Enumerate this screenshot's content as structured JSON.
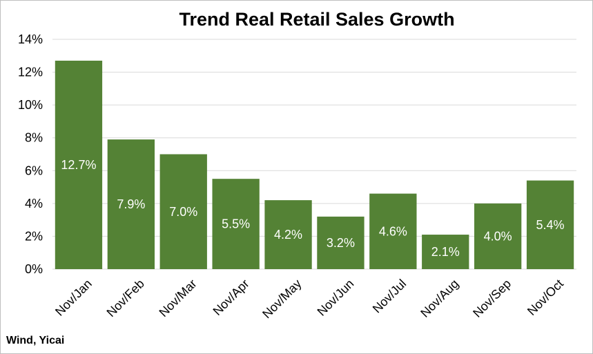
{
  "source": "Wind, Yicai",
  "colors": {
    "bar": "#548235",
    "grid": "#d9d9d9",
    "label": "#ffffff"
  },
  "chart_data": {
    "type": "bar",
    "title": "Trend Real Retail Sales Growth",
    "xlabel": "",
    "ylabel": "",
    "categories": [
      "Nov/Jan",
      "Nov/Feb",
      "Nov/Mar",
      "Nov/Apr",
      "Nov/May",
      "Nov/Jun",
      "Nov/Jul",
      "Nov/Aug",
      "Nov/Sep",
      "Nov/Oct"
    ],
    "values": [
      12.7,
      7.9,
      7.0,
      5.5,
      4.2,
      3.2,
      4.6,
      2.1,
      4.0,
      5.4
    ],
    "value_labels": [
      "12.7%",
      "7.9%",
      "7.0%",
      "5.5%",
      "4.2%",
      "3.2%",
      "4.6%",
      "2.1%",
      "4.0%",
      "5.4%"
    ],
    "ylim": [
      0,
      14
    ],
    "yticks": [
      0,
      2,
      4,
      6,
      8,
      10,
      12,
      14
    ],
    "ytick_labels": [
      "0%",
      "2%",
      "4%",
      "6%",
      "8%",
      "10%",
      "12%",
      "14%"
    ],
    "grid": true,
    "legend": "none"
  }
}
